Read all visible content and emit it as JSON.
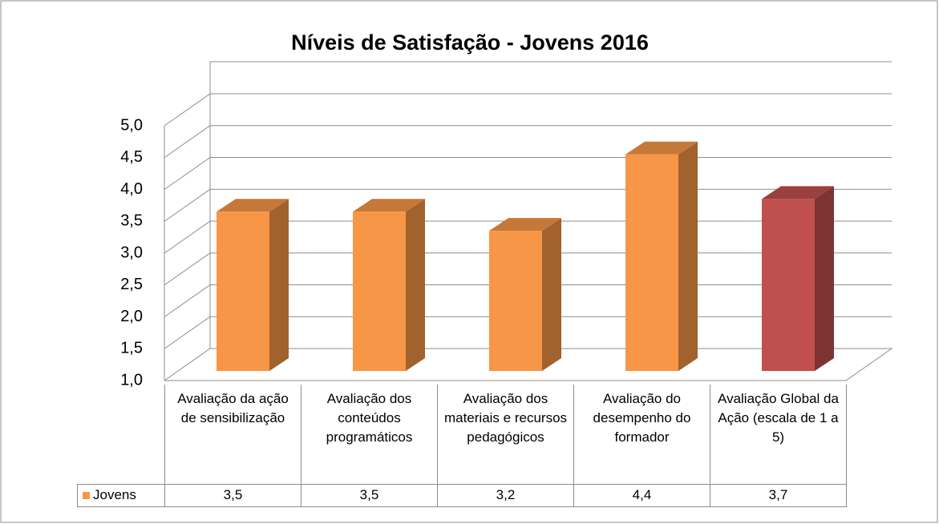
{
  "chart_data": {
    "type": "bar3d",
    "title": "Níveis de Satisfação - Jovens  2016",
    "categories": [
      "Avaliação da ação de sensibilização",
      "Avaliação dos conteúdos programáticos",
      "Avaliação dos materiais e recursos pedagógicos",
      "Avaliação do desempenho do formador",
      "Avaliação Global da Ação (escala de 1 a 5)"
    ],
    "series": [
      {
        "name": "Jovens",
        "color": "#f79646",
        "colors": [
          "#f79646",
          "#f79646",
          "#f79646",
          "#f79646",
          "#c0504d"
        ],
        "values": [
          3.5,
          3.5,
          3.2,
          4.4,
          3.7
        ],
        "value_labels": [
          "3,5",
          "3,5",
          "3,2",
          "4,4",
          "3,7"
        ]
      }
    ],
    "ylim": [
      1,
      5
    ],
    "yticks": [
      {
        "value": 1,
        "label": "1,0"
      },
      {
        "value": 1.5,
        "label": "1,5"
      },
      {
        "value": 2,
        "label": "2,0"
      },
      {
        "value": 2.5,
        "label": "2,5"
      },
      {
        "value": 3,
        "label": "3,0"
      },
      {
        "value": 3.5,
        "label": "3,5"
      },
      {
        "value": 4,
        "label": "4,0"
      },
      {
        "value": 4.5,
        "label": "4,5"
      },
      {
        "value": 5,
        "label": "5,0"
      }
    ],
    "grid": true
  }
}
